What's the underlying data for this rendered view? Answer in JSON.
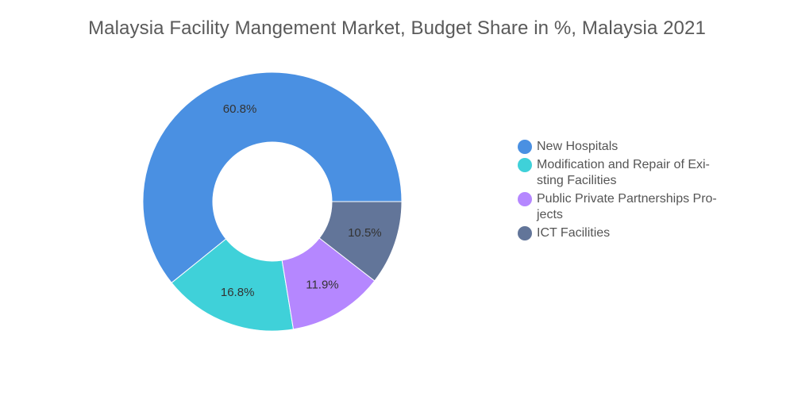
{
  "chart_data": {
    "type": "pie",
    "title": "Malaysia Facility Mangement Market, Budget Share in %, Malaysia 2021",
    "donut": true,
    "legend_position": "right",
    "categories": [
      "New Hospitals",
      "Modification and Repair of Exi-sting Facilities",
      "Public Private Partnerships Pro-jects",
      "ICT Facilities"
    ],
    "values": [
      60.8,
      16.8,
      11.9,
      10.5
    ],
    "value_labels": [
      "60.8%",
      "16.8%",
      "11.9%",
      "10.5%"
    ],
    "colors": [
      "#4a90e2",
      "#3fd1d9",
      "#b587ff",
      "#627599"
    ]
  }
}
